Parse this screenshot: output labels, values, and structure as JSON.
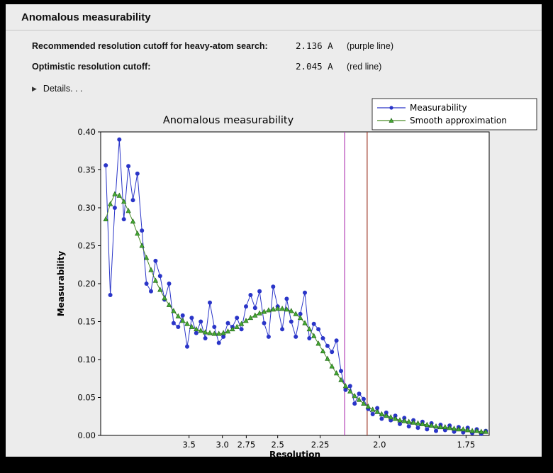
{
  "window": {
    "title": "Anomalous measurability"
  },
  "header": {
    "rows": [
      {
        "label": "Recommended resolution cutoff for heavy-atom search:",
        "value": "2.136 A",
        "note": "(purple line)"
      },
      {
        "label": "Optimistic resolution cutoff:",
        "value": "2.045 A",
        "note": "(red line)"
      }
    ],
    "details_icon": "▶",
    "details_label": "Details. . ."
  },
  "colors": {
    "panel_bg": "#ececec",
    "measurability_blue": "#2a35c8",
    "smooth_green": "#4a8c28",
    "smooth_green_dark": "#1e5c14",
    "purple_line": "#b33fb5",
    "red_line": "#a03a2a"
  },
  "chart_data": {
    "type": "line",
    "title": "Anomalous measurability",
    "xlabel": "Resolution",
    "ylabel": "Measurability",
    "plot_bg": "#ffffff",
    "figure_bg": "#ececec",
    "x_axis": {
      "unit": "Angstrom",
      "scale": "inverse_d_squared",
      "range_inv_d2": [
        0.0035,
        0.347
      ],
      "tick_d_values": [
        3.5,
        3.0,
        2.75,
        2.5,
        2.25,
        2.0,
        1.75
      ],
      "tick_labels": [
        "3.5",
        "3.0",
        "2.75",
        "2.5",
        "2.25",
        "2.0",
        "1.75"
      ]
    },
    "y_axis": {
      "range": [
        0.0,
        0.4
      ],
      "tick_values": [
        0.0,
        0.05,
        0.1,
        0.15,
        0.2,
        0.25,
        0.3,
        0.35,
        0.4
      ],
      "tick_labels": [
        "0.00",
        "0.05",
        "0.10",
        "0.15",
        "0.20",
        "0.25",
        "0.30",
        "0.35",
        "0.40"
      ]
    },
    "x_inv_d2": [
      0.008,
      0.012,
      0.016,
      0.02,
      0.024,
      0.028,
      0.032,
      0.036,
      0.04,
      0.044,
      0.048,
      0.052,
      0.056,
      0.06,
      0.064,
      0.068,
      0.072,
      0.076,
      0.08,
      0.084,
      0.088,
      0.092,
      0.096,
      0.1,
      0.104,
      0.108,
      0.112,
      0.116,
      0.12,
      0.124,
      0.128,
      0.132,
      0.136,
      0.14,
      0.144,
      0.148,
      0.152,
      0.156,
      0.16,
      0.164,
      0.168,
      0.172,
      0.176,
      0.18,
      0.184,
      0.188,
      0.192,
      0.196,
      0.2,
      0.204,
      0.208,
      0.212,
      0.216,
      0.22,
      0.224,
      0.228,
      0.232,
      0.236,
      0.24,
      0.244,
      0.248,
      0.252,
      0.256,
      0.26,
      0.264,
      0.268,
      0.272,
      0.276,
      0.28,
      0.284,
      0.288,
      0.292,
      0.296,
      0.3,
      0.304,
      0.308,
      0.312,
      0.316,
      0.32,
      0.324,
      0.328,
      0.332,
      0.336,
      0.34,
      0.344
    ],
    "series": [
      {
        "name": "Measurability",
        "color": "#2a35c8",
        "marker": "circle",
        "values": [
          0.356,
          0.185,
          0.3,
          0.39,
          0.285,
          0.355,
          0.31,
          0.345,
          0.27,
          0.2,
          0.19,
          0.23,
          0.21,
          0.179,
          0.2,
          0.148,
          0.143,
          0.158,
          0.117,
          0.155,
          0.135,
          0.15,
          0.128,
          0.175,
          0.143,
          0.122,
          0.13,
          0.148,
          0.143,
          0.155,
          0.14,
          0.17,
          0.185,
          0.168,
          0.19,
          0.148,
          0.13,
          0.196,
          0.17,
          0.14,
          0.18,
          0.15,
          0.13,
          0.16,
          0.188,
          0.128,
          0.147,
          0.14,
          0.128,
          0.118,
          0.11,
          0.125,
          0.085,
          0.06,
          0.065,
          0.042,
          0.055,
          0.048,
          0.035,
          0.028,
          0.036,
          0.022,
          0.03,
          0.02,
          0.026,
          0.015,
          0.023,
          0.012,
          0.02,
          0.01,
          0.018,
          0.008,
          0.016,
          0.006,
          0.014,
          0.007,
          0.013,
          0.005,
          0.011,
          0.004,
          0.01,
          0.003,
          0.008,
          0.002,
          0.006
        ]
      },
      {
        "name": "Smooth approximation",
        "color": "#4a8c28",
        "marker": "triangle",
        "values": [
          0.285,
          0.305,
          0.318,
          0.316,
          0.308,
          0.296,
          0.282,
          0.266,
          0.25,
          0.234,
          0.218,
          0.204,
          0.192,
          0.181,
          0.172,
          0.164,
          0.157,
          0.151,
          0.147,
          0.143,
          0.14,
          0.138,
          0.136,
          0.135,
          0.134,
          0.134,
          0.135,
          0.137,
          0.14,
          0.143,
          0.147,
          0.151,
          0.155,
          0.158,
          0.161,
          0.163,
          0.165,
          0.166,
          0.167,
          0.167,
          0.166,
          0.164,
          0.16,
          0.155,
          0.148,
          0.14,
          0.131,
          0.121,
          0.111,
          0.101,
          0.091,
          0.082,
          0.073,
          0.065,
          0.058,
          0.052,
          0.047,
          0.042,
          0.038,
          0.034,
          0.031,
          0.028,
          0.026,
          0.024,
          0.022,
          0.02,
          0.019,
          0.018,
          0.017,
          0.016,
          0.015,
          0.014,
          0.013,
          0.012,
          0.011,
          0.011,
          0.01,
          0.009,
          0.008,
          0.008,
          0.007,
          0.006,
          0.006,
          0.005,
          0.005
        ]
      }
    ],
    "vlines": [
      {
        "name": "purple-cutoff-line",
        "label": "purple line",
        "d": 2.136,
        "inv_d2": 0.2192,
        "color": "#b33fb5"
      },
      {
        "name": "red-cutoff-line",
        "label": "red line",
        "d": 2.045,
        "inv_d2": 0.2391,
        "color": "#a03a2a"
      }
    ],
    "legend": {
      "position": "upper right",
      "entries": [
        "Measurability",
        "Smooth approximation"
      ]
    }
  }
}
